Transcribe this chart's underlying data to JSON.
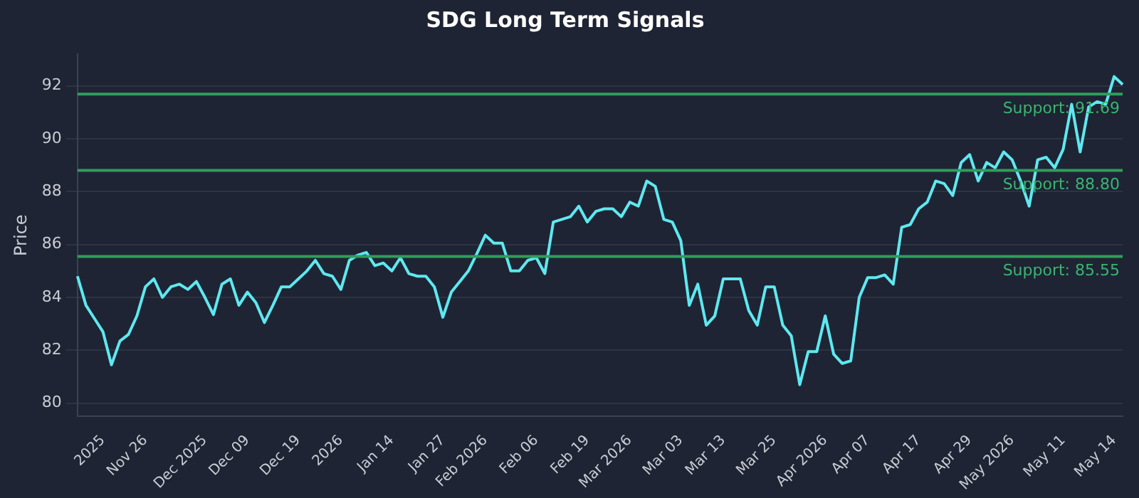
{
  "chart_data": {
    "type": "line",
    "title": "SDG Long Term Signals",
    "ylabel": "Price",
    "categories": [
      null,
      null,
      null,
      "2025",
      null,
      null,
      null,
      null,
      "Nov 26",
      null,
      null,
      null,
      null,
      null,
      null,
      "Dec 2025",
      null,
      null,
      null,
      null,
      "Dec 09",
      null,
      null,
      null,
      null,
      null,
      "Dec 19",
      null,
      null,
      null,
      null,
      "2026",
      null,
      null,
      null,
      null,
      null,
      "Jan 14",
      null,
      null,
      null,
      null,
      null,
      "Jan 27",
      null,
      null,
      null,
      null,
      "Feb 2026",
      null,
      null,
      null,
      null,
      null,
      "Feb 06",
      null,
      null,
      null,
      null,
      null,
      "Feb 19",
      null,
      null,
      null,
      null,
      "Mar 2026",
      null,
      null,
      null,
      null,
      null,
      "Mar 03",
      null,
      null,
      null,
      null,
      "Mar 13",
      null,
      null,
      null,
      null,
      null,
      "Mar 25",
      null,
      null,
      null,
      null,
      null,
      "Apr 2026",
      null,
      null,
      null,
      null,
      "Apr 07",
      null,
      null,
      null,
      null,
      null,
      "Apr 17",
      null,
      null,
      null,
      null,
      null,
      "Apr 29",
      null,
      null,
      null,
      null,
      "May 2026",
      null,
      null,
      null,
      null,
      null,
      "May 11",
      null,
      null,
      null,
      null,
      null,
      "May 14",
      null
    ],
    "series": [
      {
        "color": "#5ee8f0",
        "values": [
          84.8,
          83.7,
          83.2,
          82.7,
          81.45,
          82.35,
          82.6,
          83.3,
          84.4,
          84.7,
          84.0,
          84.4,
          84.5,
          84.3,
          84.6,
          84.0,
          83.35,
          84.5,
          84.7,
          83.7,
          84.2,
          83.8,
          83.05,
          83.7,
          84.4,
          84.4,
          84.7,
          85.0,
          85.4,
          84.9,
          84.8,
          84.3,
          85.4,
          85.6,
          85.7,
          85.2,
          85.3,
          85.0,
          85.5,
          84.9,
          84.8,
          84.8,
          84.4,
          83.25,
          84.2,
          84.6,
          85.0,
          85.65,
          86.35,
          86.05,
          86.05,
          85.0,
          85.0,
          85.4,
          85.5,
          84.9,
          86.85,
          86.95,
          87.05,
          87.45,
          86.85,
          87.25,
          87.35,
          87.35,
          87.05,
          87.6,
          87.45,
          88.4,
          88.2,
          86.95,
          86.85,
          86.15,
          83.7,
          84.5,
          82.95,
          83.3,
          84.7,
          84.7,
          84.7,
          83.5,
          82.95,
          84.4,
          84.4,
          82.95,
          82.55,
          80.7,
          81.95,
          81.95,
          83.3,
          81.85,
          81.5,
          81.6,
          84.0,
          84.75,
          84.75,
          84.85,
          84.5,
          86.65,
          86.75,
          87.35,
          87.6,
          88.4,
          88.3,
          87.85,
          89.1,
          89.4,
          88.4,
          89.1,
          88.9,
          89.5,
          89.2,
          88.4,
          87.45,
          89.2,
          89.3,
          88.9,
          89.6,
          91.3,
          89.5,
          91.2,
          91.4,
          91.3,
          92.35,
          92.05
        ]
      }
    ],
    "ylim": [
      79.5,
      93.2
    ],
    "yticks": [
      80,
      82,
      84,
      86,
      88,
      90,
      92
    ],
    "grid": "y",
    "legend": false,
    "marker": "none",
    "line_style": "solid",
    "ref_lines": [
      {
        "axis": "y",
        "value": 91.69,
        "label": "Support: 91.69",
        "color": "#2e9e5b"
      },
      {
        "axis": "y",
        "value": 88.8,
        "label": "Support: 88.80",
        "color": "#2e9e5b"
      },
      {
        "axis": "y",
        "value": 85.55,
        "label": "Support: 85.55",
        "color": "#2e9e5b"
      }
    ]
  }
}
